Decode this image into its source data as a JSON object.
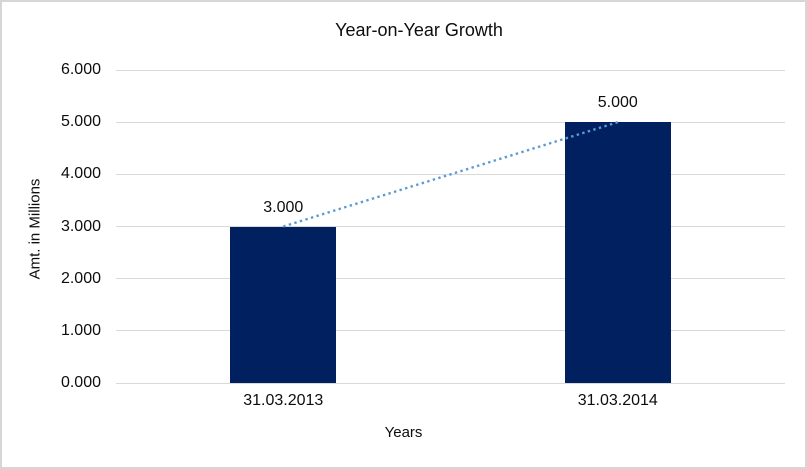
{
  "frame": {
    "background": "#ffffff",
    "border_color": "#d6d6d6"
  },
  "chart_data": {
    "type": "bar",
    "title": "Year-on-Year Growth",
    "xlabel": "Years",
    "ylabel": "Amt. in Millions",
    "categories": [
      "31.03.2013",
      "31.03.2014"
    ],
    "values": [
      3.0,
      5.0
    ],
    "data_labels": [
      "3.000",
      "5.000"
    ],
    "ylim": [
      0,
      6
    ],
    "ytick_step": 1,
    "ytick_labels": [
      "0.000",
      "1.000",
      "2.000",
      "3.000",
      "4.000",
      "5.000",
      "6.000"
    ],
    "grid": true,
    "legend": "none",
    "bar_color": "#002060",
    "gridline_color": "#d9d9d9",
    "label_color": "#0d0d0d",
    "trendline": {
      "type": "linear",
      "style": "dotted",
      "color": "#5b9bd5",
      "from_category_index": 0,
      "from_value": 3.0,
      "to_category_index": 1,
      "to_value": 5.0
    }
  }
}
